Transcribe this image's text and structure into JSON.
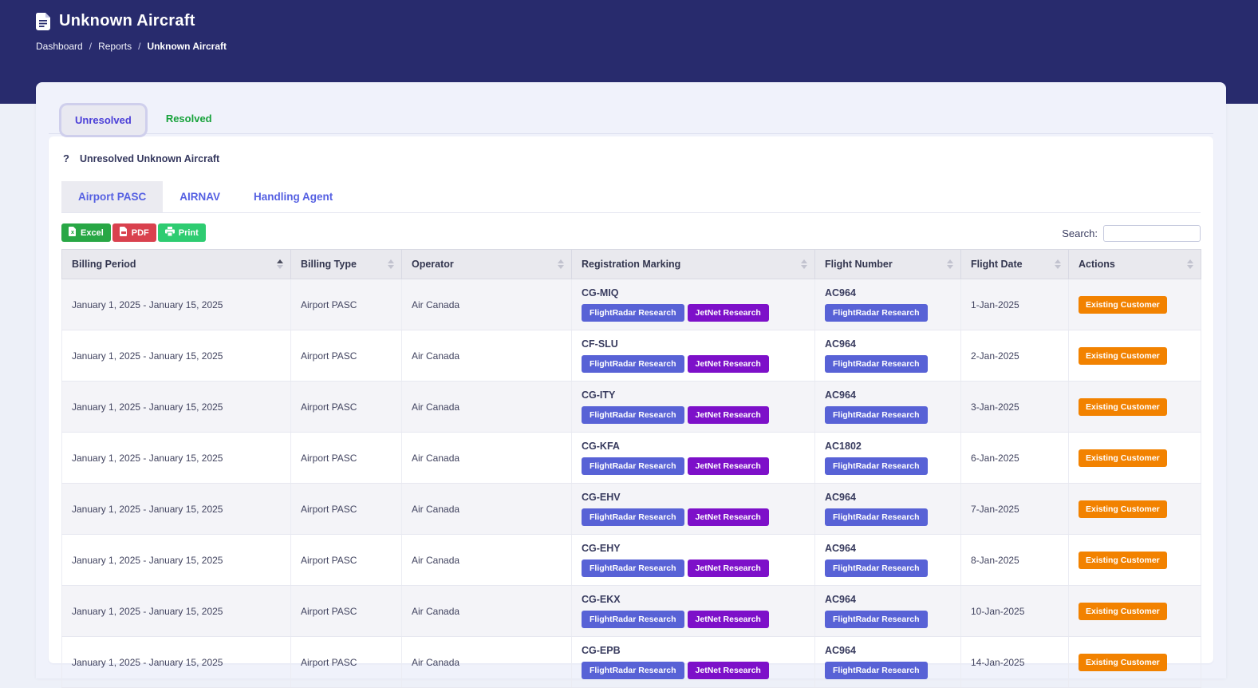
{
  "colors": {
    "header_bg": "#282b6d",
    "accent_indigo": "#4c40d8",
    "subtab_blue": "#5560e2",
    "resolved_green": "#17a23b",
    "excel_green": "#28a745",
    "pdf_red": "#d9414e",
    "print_green": "#2ecc71",
    "badge_indigo": "#5862d6",
    "badge_purple": "#7d10c9",
    "action_orange": "#f28200"
  },
  "header": {
    "title": "Unknown Aircraft",
    "separator": "/",
    "breadcrumb": [
      "Dashboard",
      "Reports",
      "Unknown Aircraft"
    ]
  },
  "tabs": {
    "unresolved": "Unresolved",
    "resolved": "Resolved"
  },
  "card": {
    "help_icon": "?",
    "title": "Unresolved Unknown Aircraft",
    "subtabs": [
      "Airport PASC",
      "AIRNAV",
      "Handling Agent"
    ],
    "active_subtab": "Airport PASC",
    "export_buttons": {
      "excel": "Excel",
      "pdf": "PDF",
      "print": "Print"
    },
    "search_label": "Search:",
    "search_value": ""
  },
  "table": {
    "columns": [
      {
        "label": "Billing Period",
        "sort": "asc"
      },
      {
        "label": "Billing Type",
        "sort": "none"
      },
      {
        "label": "Operator",
        "sort": "none"
      },
      {
        "label": "Registration Marking",
        "sort": "none"
      },
      {
        "label": "Flight Number",
        "sort": "none"
      },
      {
        "label": "Flight Date",
        "sort": "none"
      },
      {
        "label": "Actions",
        "sort": "none"
      }
    ],
    "rows": [
      {
        "billing_period": "January 1, 2025 - January 15, 2025",
        "billing_type": "Airport PASC",
        "operator": "Air Canada",
        "registration": "CG-MIQ",
        "registration_badges": [
          {
            "label": "FlightRadar Research",
            "color": "indigo"
          },
          {
            "label": "JetNet Research",
            "color": "purple"
          }
        ],
        "flight_number": "AC964",
        "flight_number_badges": [
          {
            "label": "FlightRadar Research",
            "color": "indigo"
          }
        ],
        "flight_date": "1-Jan-2025",
        "action": "Existing Customer"
      },
      {
        "billing_period": "January 1, 2025 - January 15, 2025",
        "billing_type": "Airport PASC",
        "operator": "Air Canada",
        "registration": "CF-SLU",
        "registration_badges": [
          {
            "label": "FlightRadar Research",
            "color": "indigo"
          },
          {
            "label": "JetNet Research",
            "color": "purple"
          }
        ],
        "flight_number": "AC964",
        "flight_number_badges": [
          {
            "label": "FlightRadar Research",
            "color": "indigo"
          }
        ],
        "flight_date": "2-Jan-2025",
        "action": "Existing Customer"
      },
      {
        "billing_period": "January 1, 2025 - January 15, 2025",
        "billing_type": "Airport PASC",
        "operator": "Air Canada",
        "registration": "CG-ITY",
        "registration_badges": [
          {
            "label": "FlightRadar Research",
            "color": "indigo"
          },
          {
            "label": "JetNet Research",
            "color": "purple"
          }
        ],
        "flight_number": "AC964",
        "flight_number_badges": [
          {
            "label": "FlightRadar Research",
            "color": "indigo"
          }
        ],
        "flight_date": "3-Jan-2025",
        "action": "Existing Customer"
      },
      {
        "billing_period": "January 1, 2025 - January 15, 2025",
        "billing_type": "Airport PASC",
        "operator": "Air Canada",
        "registration": "CG-KFA",
        "registration_badges": [
          {
            "label": "FlightRadar Research",
            "color": "indigo"
          },
          {
            "label": "JetNet Research",
            "color": "purple"
          }
        ],
        "flight_number": "AC1802",
        "flight_number_badges": [
          {
            "label": "FlightRadar Research",
            "color": "indigo"
          }
        ],
        "flight_date": "6-Jan-2025",
        "action": "Existing Customer"
      },
      {
        "billing_period": "January 1, 2025 - January 15, 2025",
        "billing_type": "Airport PASC",
        "operator": "Air Canada",
        "registration": "CG-EHV",
        "registration_badges": [
          {
            "label": "FlightRadar Research",
            "color": "indigo"
          },
          {
            "label": "JetNet Research",
            "color": "purple"
          }
        ],
        "flight_number": "AC964",
        "flight_number_badges": [
          {
            "label": "FlightRadar Research",
            "color": "indigo"
          }
        ],
        "flight_date": "7-Jan-2025",
        "action": "Existing Customer"
      },
      {
        "billing_period": "January 1, 2025 - January 15, 2025",
        "billing_type": "Airport PASC",
        "operator": "Air Canada",
        "registration": "CG-EHY",
        "registration_badges": [
          {
            "label": "FlightRadar Research",
            "color": "indigo"
          },
          {
            "label": "JetNet Research",
            "color": "purple"
          }
        ],
        "flight_number": "AC964",
        "flight_number_badges": [
          {
            "label": "FlightRadar Research",
            "color": "indigo"
          }
        ],
        "flight_date": "8-Jan-2025",
        "action": "Existing Customer"
      },
      {
        "billing_period": "January 1, 2025 - January 15, 2025",
        "billing_type": "Airport PASC",
        "operator": "Air Canada",
        "registration": "CG-EKX",
        "registration_badges": [
          {
            "label": "FlightRadar Research",
            "color": "indigo"
          },
          {
            "label": "JetNet Research",
            "color": "purple"
          }
        ],
        "flight_number": "AC964",
        "flight_number_badges": [
          {
            "label": "FlightRadar Research",
            "color": "indigo"
          }
        ],
        "flight_date": "10-Jan-2025",
        "action": "Existing Customer"
      },
      {
        "billing_period": "January 1, 2025 - January 15, 2025",
        "billing_type": "Airport PASC",
        "operator": "Air Canada",
        "registration": "CG-EPB",
        "registration_badges": [
          {
            "label": "FlightRadar Research",
            "color": "indigo"
          },
          {
            "label": "JetNet Research",
            "color": "purple"
          }
        ],
        "flight_number": "AC964",
        "flight_number_badges": [
          {
            "label": "FlightRadar Research",
            "color": "indigo"
          }
        ],
        "flight_date": "14-Jan-2025",
        "action": "Existing Customer"
      }
    ]
  }
}
